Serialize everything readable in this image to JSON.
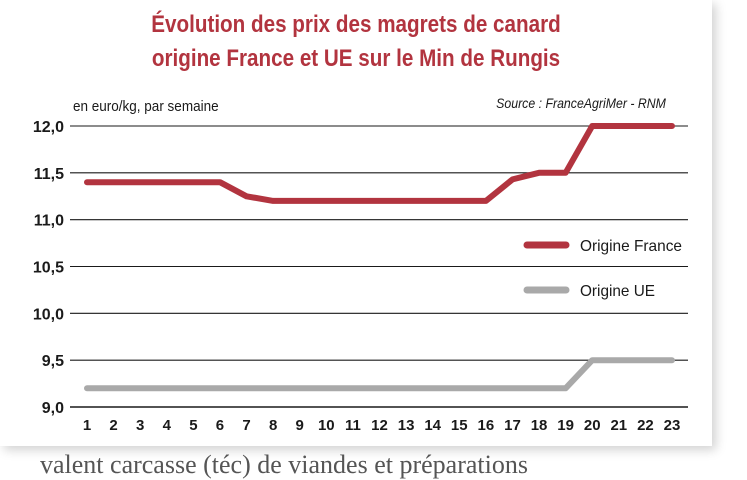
{
  "chart_data": {
    "type": "line",
    "title": [
      "Évolution des prix des magrets de canard",
      "origine France et UE sur le Min de Rungis"
    ],
    "ylabel": "en euro/kg, par semaine",
    "source": "Source : FranceAgriMer - RNM",
    "x": [
      1,
      2,
      3,
      4,
      5,
      6,
      7,
      8,
      9,
      10,
      11,
      12,
      13,
      14,
      15,
      16,
      17,
      18,
      19,
      20,
      21,
      22,
      23
    ],
    "x_tick_labels": [
      "1",
      "2",
      "3",
      "4",
      "5",
      "6",
      "7",
      "8",
      "9",
      "10",
      "11",
      "12",
      "13",
      "14",
      "15",
      "16",
      "17",
      "18",
      "19",
      "20",
      "21",
      "22",
      "23"
    ],
    "y_ticks": [
      9.0,
      9.5,
      10.0,
      10.5,
      11.0,
      11.5,
      12.0
    ],
    "y_tick_labels": [
      "9,0",
      "9,5",
      "10,0",
      "10,5",
      "11,0",
      "11,5",
      "12,0"
    ],
    "ylim": [
      9.0,
      12.0
    ],
    "grid": "horizontal",
    "legend_position": "right",
    "series": [
      {
        "name": "Origine France",
        "color": "#b2343f",
        "values": [
          11.4,
          11.4,
          11.4,
          11.4,
          11.4,
          11.4,
          11.25,
          11.2,
          11.2,
          11.2,
          11.2,
          11.2,
          11.2,
          11.2,
          11.2,
          11.2,
          11.43,
          11.5,
          11.5,
          12.0,
          12.0,
          12.0,
          12.0
        ]
      },
      {
        "name": "Origine UE",
        "color": "#a9a9a9",
        "values": [
          9.2,
          9.2,
          9.2,
          9.2,
          9.2,
          9.2,
          9.2,
          9.2,
          9.2,
          9.2,
          9.2,
          9.2,
          9.2,
          9.2,
          9.2,
          9.2,
          9.2,
          9.2,
          9.2,
          9.5,
          9.5,
          9.5,
          9.5
        ]
      }
    ]
  },
  "page": {
    "bottom_text": "valent carcasse (téc) de viandes et préparations"
  }
}
